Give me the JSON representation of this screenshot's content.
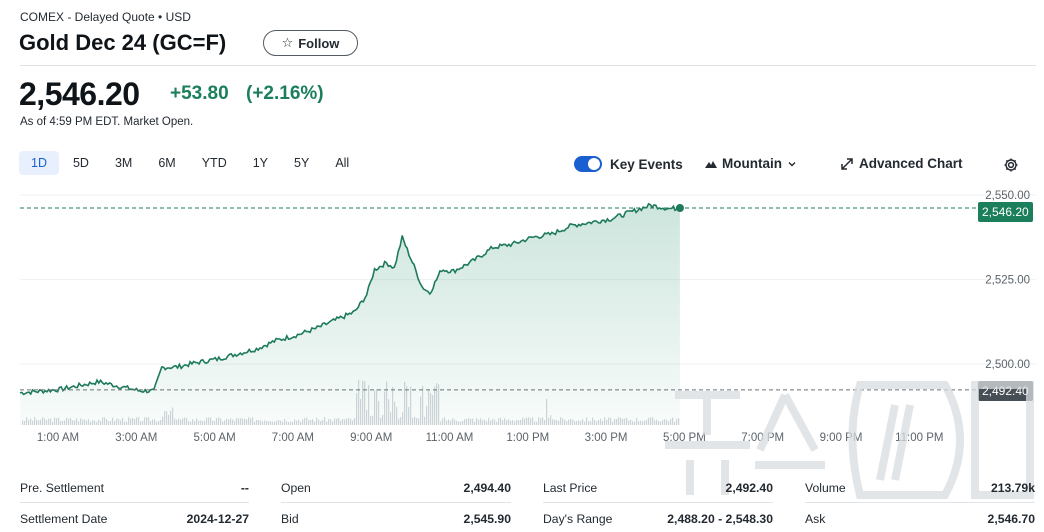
{
  "header": {
    "exchange_line": "COMEX - Delayed Quote • USD",
    "title": "Gold Dec 24 (GC=F)",
    "follow_label": "Follow"
  },
  "quote": {
    "price": "2,546.20",
    "change": "+53.80",
    "change_pct": "(+2.16%)",
    "as_of": "As of 4:59 PM EDT. Market Open."
  },
  "ranges": [
    "1D",
    "5D",
    "3M",
    "6M",
    "YTD",
    "1Y",
    "5Y",
    "All"
  ],
  "active_range": "1D",
  "controls": {
    "key_events": "Key Events",
    "chart_type": "Mountain",
    "advanced_chart": "Advanced Chart"
  },
  "chart_data": {
    "type": "area",
    "x_ticks": [
      "1:00 AM",
      "3:00 AM",
      "5:00 AM",
      "7:00 AM",
      "9:00 AM",
      "11:00 AM",
      "1:00 PM",
      "3:00 PM",
      "5:00 PM",
      "7:00 PM",
      "9:00 PM",
      "11:00 PM"
    ],
    "y_ticks": [
      "2,550.00",
      "2,525.00",
      "2,500.00"
    ],
    "y_tick_values": [
      2550,
      2525,
      2500
    ],
    "ylim": [
      2482,
      2553
    ],
    "current_price_label": "2,546.20",
    "current_price": 2546.2,
    "previous_close_label": "2,492.40",
    "previous_close": 2492.4,
    "series": [
      {
        "x": [
          0.0,
          1.0,
          2.0,
          2.5,
          3.0,
          3.4,
          3.6,
          4.0,
          4.5,
          5.0,
          5.5,
          6.0,
          6.5,
          7.0,
          7.5,
          8.0,
          8.5,
          8.8,
          9.0,
          9.3,
          9.5,
          9.7,
          10.0,
          10.2,
          10.4,
          10.7,
          11.0,
          11.5,
          12.0,
          12.5,
          13.0,
          13.5,
          14.0,
          14.5,
          15.0,
          15.5,
          16.0,
          16.5,
          16.75
        ],
        "values": [
          2491.5,
          2492.5,
          2494.8,
          2493.5,
          2492.2,
          2492.0,
          2499.0,
          2499.2,
          2500.5,
          2501.5,
          2503.0,
          2504.5,
          2507.0,
          2508.5,
          2510.5,
          2513.0,
          2515.5,
          2520.5,
          2528.0,
          2530.0,
          2528.5,
          2537.5,
          2529.0,
          2523.0,
          2521.0,
          2528.0,
          2527.5,
          2530.5,
          2534.5,
          2535.5,
          2537.5,
          2538.5,
          2541.0,
          2542.0,
          2543.0,
          2545.0,
          2547.0,
          2546.0,
          2546.2
        ]
      }
    ]
  },
  "stats": [
    {
      "label": "Pre. Settlement",
      "value": "--"
    },
    {
      "label": "Open",
      "value": "2,494.40"
    },
    {
      "label": "Last Price",
      "value": "2,492.40"
    },
    {
      "label": "Volume",
      "value": "213.79k"
    },
    {
      "label": "Settlement Date",
      "value": "2024-12-27"
    },
    {
      "label": "Bid",
      "value": "2,545.90"
    },
    {
      "label": "Day's Range",
      "value": "2,488.20 - 2,548.30"
    },
    {
      "label": "Ask",
      "value": "2,546.70"
    }
  ],
  "colors": {
    "accent_green": "#1a7f5a",
    "line_green": "#1e7a5c",
    "active_blue": "#1a5fd1",
    "prev_close_tag": "#464e56"
  }
}
